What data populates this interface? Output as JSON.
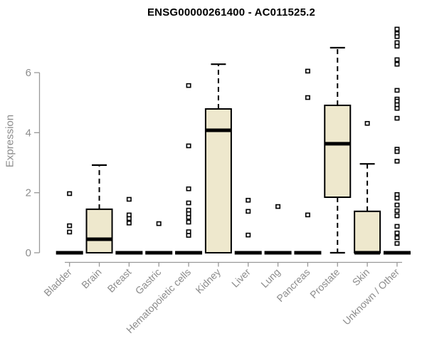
{
  "chart_data": {
    "type": "boxplot",
    "title": "ENSG00000261400 - AC011525.2",
    "ylabel": "Expression",
    "xlabel": "",
    "yticks": [
      0,
      2,
      4,
      6
    ],
    "ylim": [
      0,
      7.6
    ],
    "grid": false,
    "legend": null,
    "categories": [
      "Bladder",
      "Brain",
      "Breast",
      "Gastric",
      "Hematopoietic cells",
      "Kidney",
      "Liver",
      "Lung",
      "Pancreas",
      "Prostate",
      "Skin",
      "Unknown / Other"
    ],
    "boxes": [
      {
        "category": "Bladder",
        "q1": 0,
        "median": 0,
        "q3": 0,
        "whisker_low": 0,
        "whisker_high": 0,
        "outliers": [
          1.97,
          0.9,
          0.69
        ]
      },
      {
        "category": "Brain",
        "q1": 0,
        "median": 0.45,
        "q3": 1.45,
        "whisker_low": 0,
        "whisker_high": 2.92,
        "outliers": []
      },
      {
        "category": "Breast",
        "q1": 0,
        "median": 0,
        "q3": 0,
        "whisker_low": 0,
        "whisker_high": 0,
        "outliers": [
          1.78,
          1.26,
          1.14,
          0.99
        ]
      },
      {
        "category": "Gastric",
        "q1": 0,
        "median": 0,
        "q3": 0,
        "whisker_low": 0,
        "whisker_high": 0,
        "outliers": [
          0.97
        ]
      },
      {
        "category": "Hematopoietic cells",
        "q1": 0,
        "median": 0,
        "q3": 0,
        "whisker_low": 0,
        "whisker_high": 0,
        "outliers": [
          5.57,
          3.56,
          2.13,
          1.66,
          1.42,
          1.3,
          1.18,
          1.02,
          0.7,
          0.58
        ]
      },
      {
        "category": "Kidney",
        "q1": 0,
        "median": 4.08,
        "q3": 4.79,
        "whisker_low": 0,
        "whisker_high": 6.28,
        "outliers": []
      },
      {
        "category": "Liver",
        "q1": 0,
        "median": 0,
        "q3": 0,
        "whisker_low": 0,
        "whisker_high": 0,
        "outliers": [
          1.75,
          1.38,
          0.59
        ]
      },
      {
        "category": "Lung",
        "q1": 0,
        "median": 0,
        "q3": 0,
        "whisker_low": 0,
        "whisker_high": 0,
        "outliers": [
          1.54
        ]
      },
      {
        "category": "Pancreas",
        "q1": 0,
        "median": 0,
        "q3": 0,
        "whisker_low": 0,
        "whisker_high": 0,
        "outliers": [
          6.05,
          5.17,
          1.26
        ]
      },
      {
        "category": "Prostate",
        "q1": 1.85,
        "median": 3.63,
        "q3": 4.91,
        "whisker_low": 0,
        "whisker_high": 6.83,
        "outliers": []
      },
      {
        "category": "Skin",
        "q1": 0,
        "median": 0,
        "q3": 1.38,
        "whisker_low": 0,
        "whisker_high": 2.96,
        "outliers": [
          4.31
        ]
      },
      {
        "category": "Unknown / Other",
        "q1": 0,
        "median": 0,
        "q3": 0,
        "whisker_low": 0,
        "whisker_high": 0,
        "outliers": [
          7.45,
          7.3,
          7.2,
          7.0,
          6.88,
          6.43,
          6.28,
          5.41,
          5.12,
          5.05,
          4.93,
          4.81,
          4.48,
          3.45,
          3.37,
          3.05,
          1.94,
          1.82,
          1.59,
          1.4,
          1.23,
          0.88,
          0.66,
          0.5,
          0.31
        ]
      }
    ],
    "colors": {
      "box_fill": "#EEE8CD",
      "box_stroke": "#000000",
      "median": "#000000",
      "whisker": "#000000",
      "outlier_stroke": "#000000",
      "axis_text": "#8C8C8C",
      "axis_line": "#999999",
      "title_text": "#000000",
      "background": "#FFFFFF"
    }
  }
}
